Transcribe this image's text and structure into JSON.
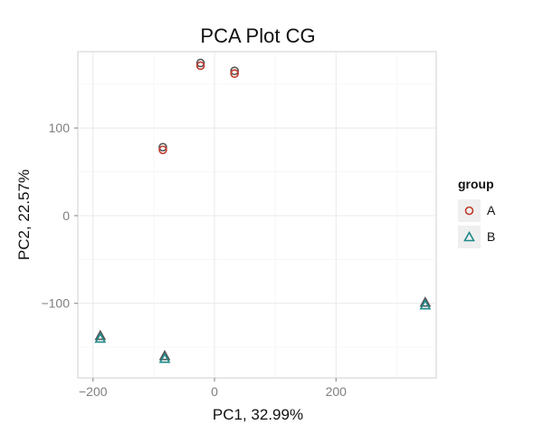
{
  "chart_data": {
    "type": "scatter",
    "title": "PCA Plot CG",
    "xlabel": "PC1, 32.99%",
    "ylabel": "PC2, 22.57%",
    "xlim": [
      -225,
      365
    ],
    "ylim": [
      -185,
      187
    ],
    "xticks": [
      -200,
      0,
      200
    ],
    "xtick_labels": [
      "−200",
      "0",
      "200"
    ],
    "yticks": [
      -100,
      0,
      100
    ],
    "ytick_labels": [
      "−100",
      "0",
      "100"
    ],
    "grid": true,
    "legend": {
      "title": "group",
      "position": "right"
    },
    "series": [
      {
        "name": "A",
        "marker": "circle",
        "color": "#c0392b",
        "points": [
          {
            "x": -85,
            "y": 75
          },
          {
            "x": -23,
            "y": 171
          },
          {
            "x": 33,
            "y": 162
          }
        ]
      },
      {
        "name": "B",
        "marker": "triangle",
        "color": "#1f8a8a",
        "points": [
          {
            "x": -188,
            "y": -140
          },
          {
            "x": -82,
            "y": -163
          },
          {
            "x": 347,
            "y": -102
          }
        ]
      }
    ]
  },
  "colors": {
    "panel_bg": "#ffffff",
    "panel_border": "#cfcfcf",
    "grid_major": "#e8e8e8",
    "grid_minor": "#f2f2f2",
    "tick_text": "#7f7f7f",
    "legend_key_bg": "#efefef",
    "overlap_marker": "#555555"
  }
}
